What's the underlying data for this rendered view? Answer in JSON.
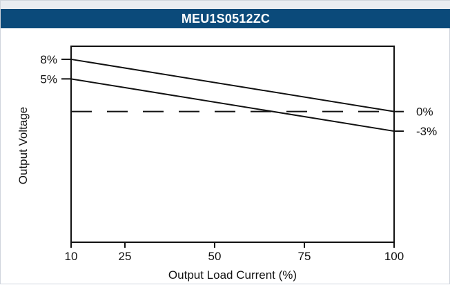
{
  "title": "MEU1S0512ZC",
  "chart_data": {
    "type": "line",
    "title": "MEU1S0512ZC",
    "xlabel": "Output Load Current (%)",
    "ylabel": "Output Voltage",
    "xlim": [
      10,
      100
    ],
    "ylim": [
      -20,
      10
    ],
    "x_ticks": [
      10,
      25,
      50,
      75,
      100
    ],
    "x_tick_labels": [
      "10",
      "25",
      "50",
      "75",
      "100"
    ],
    "left_tick_labels": [
      {
        "value": 8,
        "label": "8%"
      },
      {
        "value": 5,
        "label": "5%"
      }
    ],
    "right_tick_labels": [
      {
        "value": 0,
        "label": "0%"
      },
      {
        "value": -3,
        "label": "-3%"
      }
    ],
    "series": [
      {
        "x": [
          10,
          100
        ],
        "y": [
          8,
          0
        ],
        "style": "solid"
      },
      {
        "x": [
          10,
          100
        ],
        "y": [
          5,
          -3
        ],
        "style": "solid"
      },
      {
        "x": [
          10,
          100
        ],
        "y": [
          0,
          0
        ],
        "style": "dashed"
      }
    ],
    "grid": false,
    "colors": {
      "title_bg": "#0b4a7a",
      "line": "#111111"
    }
  }
}
